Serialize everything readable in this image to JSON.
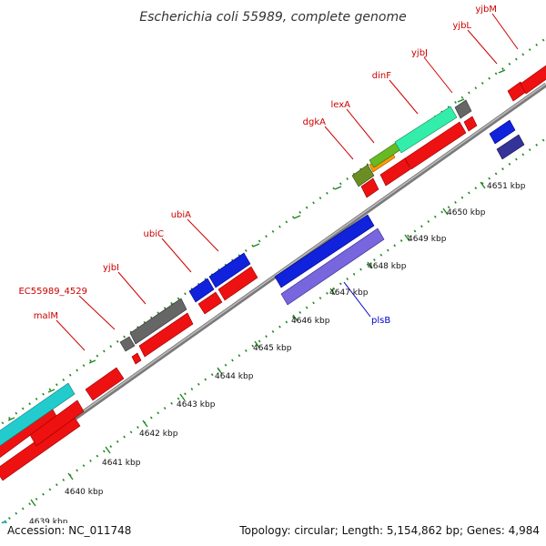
{
  "title": "Escherichia coli 55989, complete genome",
  "footer": {
    "accession": "Accession: NC_011748",
    "summary": "Topology: circular; Length: 5,154,862 bp; Genes: 4,984"
  },
  "ruler_labels": [
    "4639 kbp",
    "4640 kbp",
    "4641 kbp",
    "4642 kbp",
    "4643 kbp",
    "4644 kbp",
    "4645 kbp",
    "4646 kbp",
    "4647 kbp",
    "4648 kbp",
    "4649 kbp",
    "4650 kbp",
    "4651 kbp"
  ],
  "gene_labels": [
    {
      "text": "malM",
      "color": "#cc0000"
    },
    {
      "text": "EC55989_4529",
      "color": "#cc0000"
    },
    {
      "text": "yjbI",
      "color": "#cc0000"
    },
    {
      "text": "ubiC",
      "color": "#cc0000"
    },
    {
      "text": "ubiA",
      "color": "#cc0000"
    },
    {
      "text": "dgkA",
      "color": "#cc0000"
    },
    {
      "text": "lexA",
      "color": "#cc0000"
    },
    {
      "text": "dinF",
      "color": "#cc0000"
    },
    {
      "text": "yjbJ",
      "color": "#cc0000"
    },
    {
      "text": "yjbL",
      "color": "#cc0000"
    },
    {
      "text": "yjbM",
      "color": "#cc0000"
    },
    {
      "text": "plsB",
      "color": "#0000cc"
    }
  ],
  "colors": {
    "forward_gene": "#ee1111",
    "reverse_gene": "#1122dd",
    "teal_feature": "#22cccc",
    "grey_feature": "#666666",
    "mint_feature": "#33eeaa",
    "olive_feature": "#6b8e23",
    "orange_feature": "#ff9900",
    "lavender_feature": "#7766dd",
    "navy_feature": "#333399",
    "backbone": "#888888",
    "tick": "#228822"
  }
}
